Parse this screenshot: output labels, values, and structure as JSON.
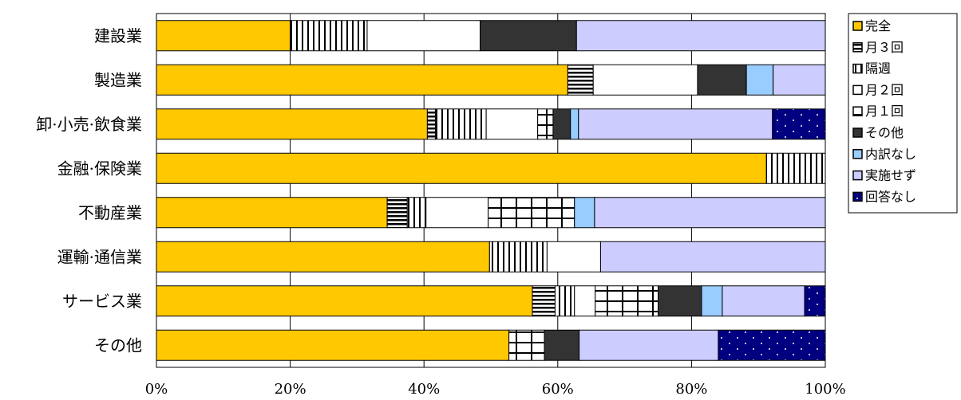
{
  "chart_data": {
    "type": "bar",
    "orientation": "horizontal",
    "stacked": true,
    "normalized": true,
    "categories": [
      "建設業",
      "製造業",
      "卸·小売·飲食業",
      "金融·保険業",
      "不動産業",
      "運輸·通信業",
      "サービス業",
      "その他"
    ],
    "xlim": [
      0,
      100
    ],
    "xticks": [
      "0%",
      "20%",
      "40%",
      "60%",
      "80%",
      "100%"
    ],
    "grid": "vertical",
    "legend_position": "right",
    "series": [
      {
        "name": "完全",
        "color": "#FFC800",
        "pattern": "solid",
        "values": [
          20.0,
          61.5,
          40.5,
          91.2,
          34.5,
          49.8,
          56.2,
          52.7
        ]
      },
      {
        "name": "月３回",
        "color": "#FFFFFF",
        "pattern": "horizontal-stripes",
        "values": [
          0,
          3.8,
          1.2,
          0,
          3.0,
          0,
          3.4,
          0
        ]
      },
      {
        "name": "隔週",
        "color": "#FFFFFF",
        "pattern": "vertical-stripes",
        "values": [
          11.5,
          0,
          7.6,
          8.8,
          2.8,
          8.6,
          2.9,
          0
        ]
      },
      {
        "name": "月２回",
        "color": "#FFFFFF",
        "pattern": "plain",
        "values": [
          16.9,
          15.6,
          7.7,
          0,
          9.3,
          8.0,
          3.1,
          0
        ]
      },
      {
        "name": "月１回",
        "color": "#FFFFFF",
        "pattern": "grid",
        "values": [
          0,
          0,
          2.3,
          0,
          12.9,
          0,
          9.4,
          5.3
        ]
      },
      {
        "name": "その他",
        "color": "#333333",
        "pattern": "solid",
        "values": [
          14.4,
          7.3,
          2.6,
          0,
          0,
          0,
          6.5,
          5.2
        ]
      },
      {
        "name": "内訳なし",
        "color": "#99CCFF",
        "pattern": "solid",
        "values": [
          0,
          4.0,
          1.2,
          0,
          3.0,
          0,
          3.1,
          0
        ]
      },
      {
        "name": "実施せず",
        "color": "#CCCCFF",
        "pattern": "solid",
        "values": [
          37.2,
          7.8,
          29.0,
          0,
          34.5,
          33.6,
          12.3,
          20.8
        ]
      },
      {
        "name": "回答なし",
        "color": "#000080",
        "pattern": "dots",
        "values": [
          0,
          0,
          7.9,
          0,
          0,
          0,
          3.1,
          16.0
        ]
      }
    ]
  }
}
